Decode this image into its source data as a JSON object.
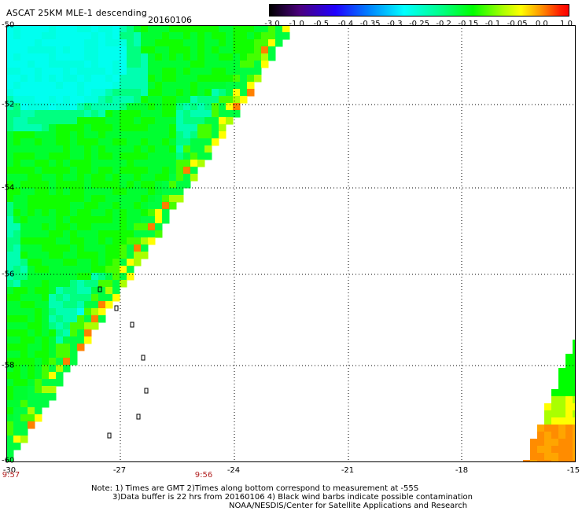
{
  "title": "ASCAT 25KM MLE-1 descending",
  "date": "20160106",
  "colorbar": {
    "labels": [
      "-3.0",
      "-1.0",
      "-0.5",
      "-0.4",
      "-0.35",
      "-0.3",
      "-0.25",
      "-0.2",
      "-0.15",
      "-0.1",
      "-0.05",
      "0.0",
      "1.0"
    ],
    "colors": [
      "#000000",
      "#4b007d",
      "#2000ff",
      "#0080ff",
      "#00ffff",
      "#00ff80",
      "#00ff00",
      "#aaff00",
      "#ffff00",
      "#ffa000",
      "#ff2000",
      "#ff0000"
    ]
  },
  "map": {
    "lat_range": [
      -60,
      -50
    ],
    "lon_range": [
      -30,
      -15
    ],
    "lat_labels": [
      "-50",
      "-52",
      "-54",
      "-56",
      "-58",
      "-60"
    ],
    "lon_labels": [
      "-30",
      "-27",
      "-24",
      "-21",
      "-18",
      "-15"
    ],
    "pass_times": [
      "9:57",
      "9:56"
    ]
  },
  "notes": {
    "line1": "Note: 1) Times are GMT 2)Times along bottom correspond to measurement at -55S",
    "line2": "3)Data buffer is 22 hrs from 20160106 4) Black wind barbs indicate possible contamination",
    "line3": "NOAA/NESDIS/Center for Satellite Applications and Research"
  }
}
